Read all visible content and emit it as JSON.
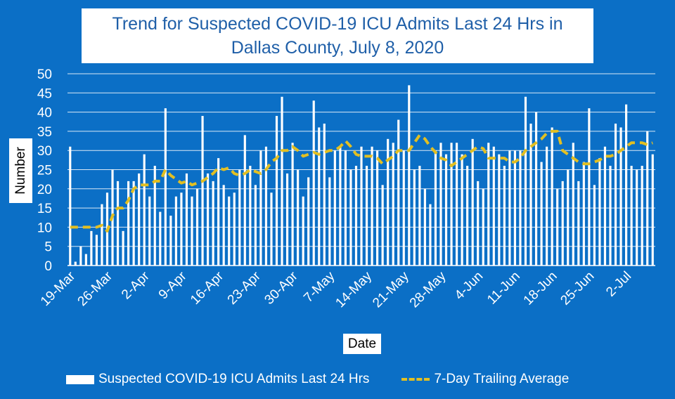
{
  "chart_data": {
    "type": "bar",
    "title": "Trend for Suspected COVID-19 ICU Admits Last 24 Hrs in Dallas County, July 8, 2020",
    "xlabel": "Date",
    "ylabel": "Number",
    "ylim": [
      0,
      50
    ],
    "yticks": [
      0,
      5,
      10,
      15,
      20,
      25,
      30,
      35,
      40,
      45,
      50
    ],
    "grid": true,
    "legend_position": "bottom",
    "x_tick_labels": [
      "19-Mar",
      "26-Mar",
      "2-Apr",
      "9-Apr",
      "16-Apr",
      "23-Apr",
      "30-Apr",
      "7-May",
      "14-May",
      "21-May",
      "28-May",
      "4-Jun",
      "11-Jun",
      "18-Jun",
      "25-Jun",
      "2-Jul"
    ],
    "x_tick_interval_days": 7,
    "series": [
      {
        "name": "Suspected COVID-19 ICU Admits Last 24 Hrs",
        "type": "bar",
        "color": "#ffffff",
        "values": [
          31,
          1,
          5,
          3,
          9,
          8,
          16,
          19,
          25,
          22,
          9,
          22,
          22,
          24,
          29,
          18,
          26,
          14,
          41,
          13,
          18,
          19,
          24,
          18,
          20,
          39,
          24,
          22,
          28,
          21,
          18,
          19,
          25,
          34,
          26,
          21,
          30,
          31,
          19,
          39,
          44,
          24,
          32,
          25,
          18,
          23,
          43,
          36,
          37,
          23,
          30,
          31,
          30,
          25,
          26,
          31,
          26,
          31,
          30,
          21,
          33,
          32,
          38,
          30,
          47,
          25,
          26,
          20,
          16,
          30,
          32,
          29,
          32,
          32,
          29,
          26,
          33,
          22,
          20,
          32,
          31,
          29,
          26,
          30,
          30,
          30,
          44,
          37,
          40,
          27,
          31,
          36,
          20,
          22,
          25,
          32,
          22,
          27,
          41,
          21,
          28,
          31,
          26,
          37,
          36,
          42,
          26,
          25,
          26,
          35,
          29
        ]
      },
      {
        "name": "7-Day Trailing Average",
        "type": "line",
        "style": "dashed",
        "color": "#e2bf22",
        "values": [
          10,
          10,
          10,
          10,
          10,
          10,
          10.5,
          9,
          13,
          15,
          15,
          17,
          20,
          21,
          21,
          21,
          22,
          22,
          25,
          23.5,
          22.5,
          21.5,
          22,
          21,
          21.5,
          22,
          23,
          24,
          25.5,
          25,
          25.5,
          24,
          23.5,
          24,
          25,
          24.5,
          24,
          25,
          27,
          28,
          30,
          30,
          31,
          30,
          28.5,
          29,
          29.5,
          29,
          29.5,
          30,
          30,
          31,
          32.5,
          31,
          29,
          28.5,
          28.5,
          28.5,
          28,
          26.5,
          27.5,
          28.5,
          30,
          30,
          30,
          32,
          34,
          33,
          31,
          29.5,
          28,
          27.5,
          26,
          27,
          28,
          29,
          30,
          31,
          30.5,
          28,
          28,
          28,
          28,
          27,
          27,
          28,
          30,
          31,
          32,
          33,
          34.5,
          35,
          35,
          30,
          29,
          28,
          27,
          26.5,
          26.5,
          27,
          27.5,
          28.5,
          28.5,
          29,
          30,
          31,
          32,
          32,
          32,
          31.5,
          32
        ]
      }
    ]
  }
}
